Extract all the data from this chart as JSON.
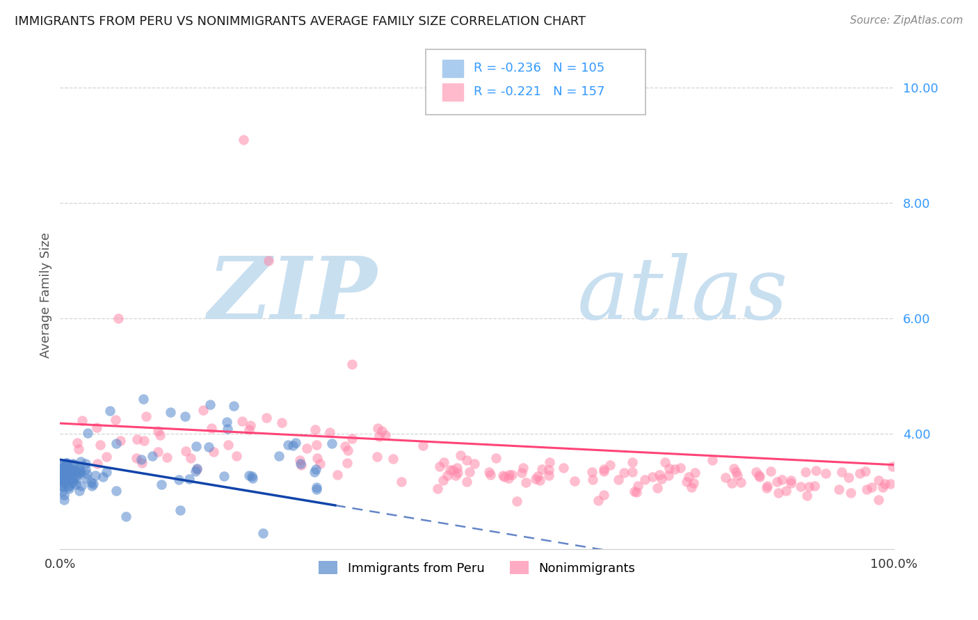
{
  "title": "IMMIGRANTS FROM PERU VS NONIMMIGRANTS AVERAGE FAMILY SIZE CORRELATION CHART",
  "source_text": "Source: ZipAtlas.com",
  "ylabel": "Average Family Size",
  "xlim": [
    0,
    1
  ],
  "ylim": [
    2.0,
    10.8
  ],
  "yticks_right": [
    4.0,
    6.0,
    8.0,
    10.0
  ],
  "legend_labels_bottom": [
    "Immigrants from Peru",
    "Nonimmigrants"
  ],
  "R_blue": -0.236,
  "N_blue": 105,
  "R_pink": -0.221,
  "N_pink": 157,
  "blue_scatter_color": "#5588cc",
  "pink_scatter_color": "#ff88aa",
  "blue_line_color": "#1144aa",
  "pink_line_color": "#ff4477",
  "blue_legend_color": "#aaccee",
  "pink_legend_color": "#ffbbcc",
  "watermark_zip_color": "#c8dff0",
  "watermark_atlas_color": "#c8dff0",
  "grid_color": "#cccccc",
  "background_color": "#ffffff",
  "title_fontsize": 13,
  "axis_label_color": "#555555",
  "tick_color": "#333333",
  "right_tick_color": "#3399ff",
  "source_color": "#888888",
  "seed": 99
}
